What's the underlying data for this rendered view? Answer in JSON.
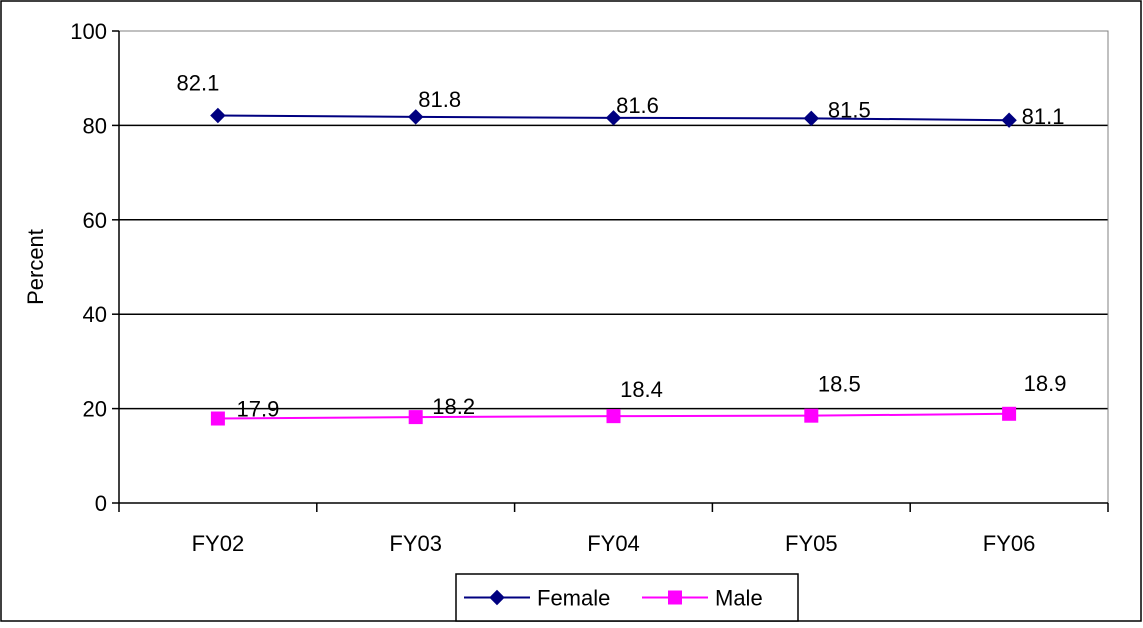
{
  "chart_data": {
    "type": "line",
    "categories": [
      "FY02",
      "FY03",
      "FY04",
      "FY05",
      "FY06"
    ],
    "series": [
      {
        "name": "Female",
        "values": [
          82.1,
          81.8,
          81.6,
          81.5,
          81.1
        ],
        "color": "#000080",
        "marker": "diamond"
      },
      {
        "name": "Male",
        "values": [
          17.9,
          18.2,
          18.4,
          18.5,
          18.9
        ],
        "color": "#ff00ff",
        "marker": "square"
      }
    ],
    "title": "",
    "xlabel": "",
    "ylabel": "Percent",
    "ylim": [
      0,
      100
    ],
    "yticks": [
      0,
      20,
      40,
      60,
      80,
      100
    ],
    "grid": true,
    "legend_position": "bottom",
    "data_labels": true
  }
}
